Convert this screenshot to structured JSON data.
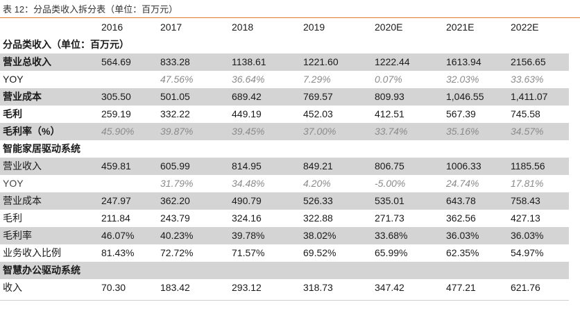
{
  "caption": "表 12：分品类收入拆分表（单位：百万元）",
  "columns": [
    "",
    "2016",
    "2017",
    "2018",
    "2019",
    "2020E",
    "2021E",
    "2022E"
  ],
  "rows": [
    {
      "label": "分品类收入（单位：百万元）",
      "values": [
        "",
        "",
        "",
        "",
        "",
        "",
        ""
      ],
      "kind": "section"
    },
    {
      "label": "营业总收入",
      "values": [
        "564.69",
        "833.28",
        "1138.61",
        "1221.60",
        "1222.44",
        "1613.94",
        "2156.65"
      ],
      "kind": "grey-bold"
    },
    {
      "label": "YOY",
      "values": [
        "",
        "47.56%",
        "36.64%",
        "7.29%",
        "0.07%",
        "32.03%",
        "33.63%"
      ],
      "kind": "white-italic"
    },
    {
      "label": "营业成本",
      "values": [
        "305.50",
        "501.05",
        "689.42",
        "769.57",
        "809.93",
        "1,046.55",
        "1,411.07"
      ],
      "kind": "grey-bold"
    },
    {
      "label": "毛利",
      "values": [
        "259.19",
        "332.22",
        "449.19",
        "452.03",
        "412.51",
        "567.39",
        "745.58"
      ],
      "kind": "white-bold"
    },
    {
      "label": "毛利率（%）",
      "values": [
        "45.90%",
        "39.87%",
        "39.45%",
        "37.00%",
        "33.74%",
        "35.16%",
        "34.57%"
      ],
      "kind": "grey-bold-italic"
    },
    {
      "label": "智能家居驱动系统",
      "values": [
        "",
        "",
        "",
        "",
        "",
        "",
        ""
      ],
      "kind": "section"
    },
    {
      "label": "营业收入",
      "values": [
        "459.81",
        "605.99",
        "814.95",
        "849.21",
        "806.75",
        "1006.33",
        "1185.56"
      ],
      "kind": "grey"
    },
    {
      "label": "YOY",
      "values": [
        "",
        "31.79%",
        "34.48%",
        "4.20%",
        "-5.00%",
        "24.74%",
        "17.81%"
      ],
      "kind": "white-italic-light"
    },
    {
      "label": "营业成本",
      "values": [
        "247.97",
        "362.20",
        "490.79",
        "526.33",
        "535.01",
        "643.78",
        "758.43"
      ],
      "kind": "grey"
    },
    {
      "label": "毛利",
      "values": [
        "211.84",
        "243.79",
        "324.16",
        "322.88",
        "271.73",
        "362.56",
        "427.13"
      ],
      "kind": "white"
    },
    {
      "label": "毛利率",
      "values": [
        "46.07%",
        "40.23%",
        "39.78%",
        "38.02%",
        "33.68%",
        "36.03%",
        "36.03%"
      ],
      "kind": "grey"
    },
    {
      "label": "业务收入比例",
      "values": [
        "81.43%",
        "72.72%",
        "71.57%",
        "69.52%",
        "65.99%",
        "62.35%",
        "54.97%"
      ],
      "kind": "white"
    },
    {
      "label": "智慧办公驱动系统",
      "values": [
        "",
        "",
        "",
        "",
        "",
        "",
        ""
      ],
      "kind": "section-grey"
    },
    {
      "label": "收入",
      "values": [
        "70.30",
        "183.42",
        "293.12",
        "318.73",
        "347.42",
        "477.21",
        "621.76"
      ],
      "kind": "white"
    }
  ]
}
